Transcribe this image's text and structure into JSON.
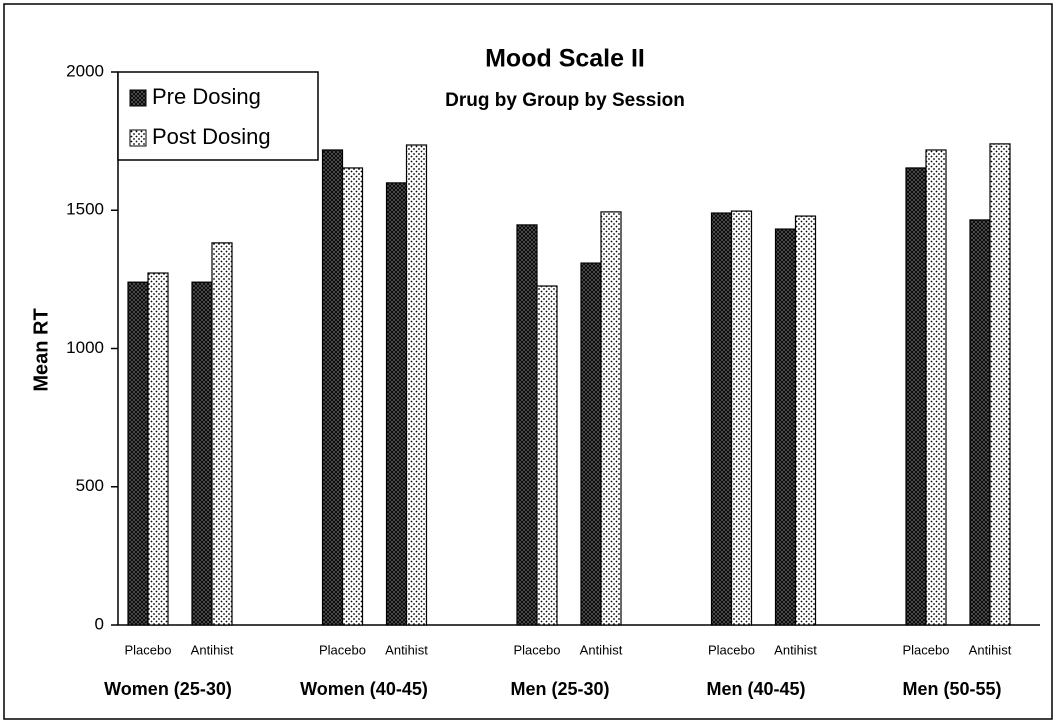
{
  "chart_data": {
    "type": "bar",
    "title": "Mood Scale II",
    "subtitle": "Drug by Group by Session",
    "y_label": "Mean RT",
    "groups": [
      "Women (25-30)",
      "Women (40-45)",
      "Men (25-30)",
      "Men (40-45)",
      "Men (50-55)"
    ],
    "categories": [
      "Placebo",
      "Antihist",
      "Placebo",
      "Antihist",
      "Placebo",
      "Antihist",
      "Placebo",
      "Antihist",
      "Placebo",
      "Antihist"
    ],
    "series": [
      {
        "name": "Pre Dosing",
        "color": "#555555",
        "values": [
          1240,
          1240,
          1718,
          1599,
          1447,
          1309,
          1490,
          1432,
          1653,
          1465
        ]
      },
      {
        "name": "Post Dosing",
        "color": "#ffffff",
        "values": [
          1273,
          1382,
          1653,
          1736,
          1226,
          1494,
          1497,
          1479,
          1718,
          1740
        ]
      }
    ],
    "ylim": [
      0,
      2000
    ],
    "yticks": [
      0,
      500,
      1000,
      1500,
      2000
    ],
    "grid": false,
    "legend": "top-left"
  }
}
